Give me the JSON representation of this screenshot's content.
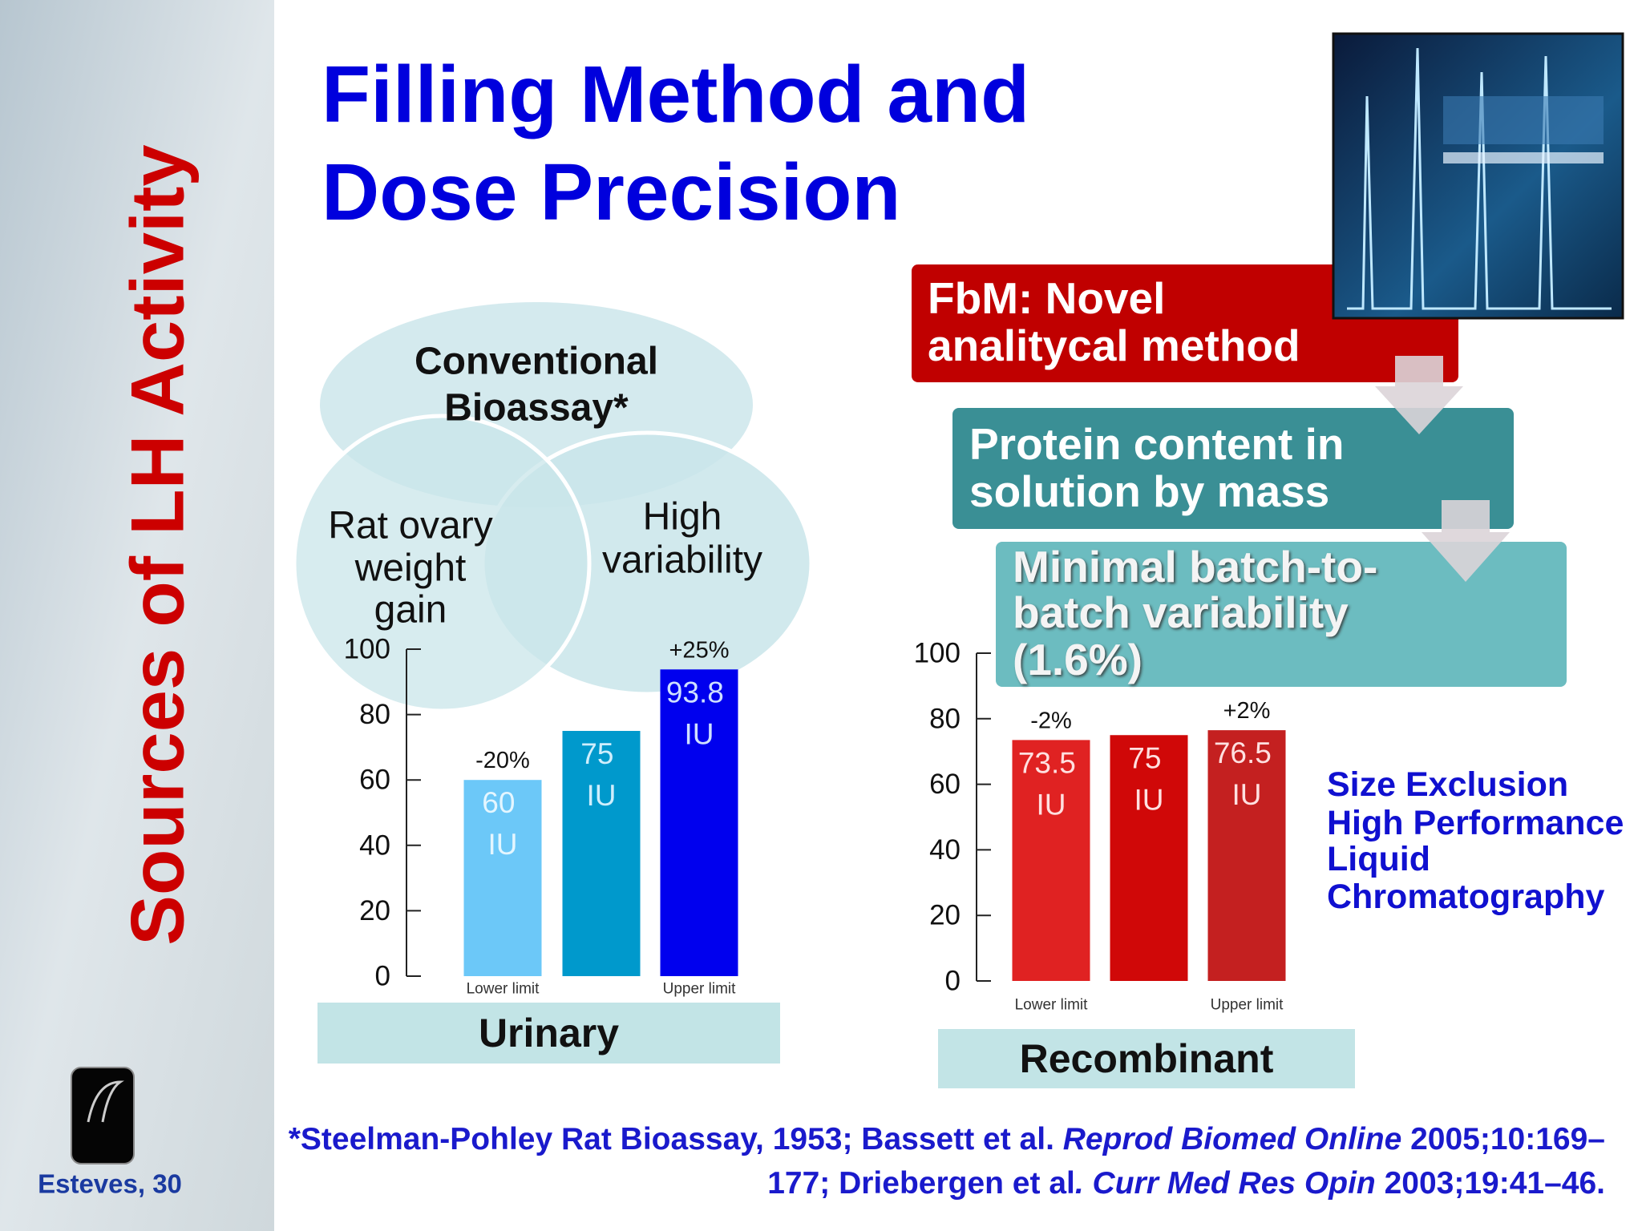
{
  "slide": {
    "sidebar_title": "Sources of LH Activity",
    "footer": "Esteves, 30",
    "title": [
      "Filling Method and",
      "Dose Precision"
    ],
    "venn": {
      "top": [
        "Conventional",
        "Bioassay*"
      ],
      "left": [
        "Rat ovary",
        "weight",
        "gain"
      ],
      "right": [
        "High",
        "variability"
      ]
    },
    "flow": [
      [
        "FbM: Novel",
        "analitycal method"
      ],
      [
        "Protein content in",
        "solution by mass"
      ],
      [
        "Minimal batch-to-",
        "batch variability",
        "(1.6%)"
      ]
    ],
    "method": [
      "Size Exclusion",
      "High Performance",
      "Liquid",
      "Chromatography"
    ],
    "citation": [
      [
        {
          "text": "*Steelman-Pohley Rat Bioassay, 1953; Bassett et al. ",
          "italic": false
        },
        {
          "text": "Reprod Biomed Online",
          "italic": true
        },
        {
          "text": " 2005;10:169–",
          "italic": false
        }
      ],
      [
        {
          "text": "177; Driebergen et al",
          "italic": false
        },
        {
          "text": ". Curr Med Res Opin",
          "italic": true
        },
        {
          "text": " 2003;19:41–46.",
          "italic": false
        }
      ]
    ]
  },
  "chart_data": [
    {
      "type": "bar",
      "xlabel": "Urinary",
      "categories": [
        "Lower limit",
        null,
        "Upper limit"
      ],
      "values": [
        60,
        75,
        93.8
      ],
      "value_labels": [
        "60 IU",
        "75 IU",
        "93.8 IU"
      ],
      "annotations": [
        "-20%",
        null,
        "+25%"
      ],
      "colors": [
        "#6cc8f8",
        "#0099cc",
        "#0000ee"
      ],
      "ylim": [
        0,
        100
      ],
      "yticks": [
        0,
        20,
        40,
        60,
        80,
        100
      ]
    },
    {
      "type": "bar",
      "xlabel": "Recombinant",
      "categories": [
        "Lower limit",
        null,
        "Upper limit"
      ],
      "values": [
        73.5,
        75,
        76.5
      ],
      "value_labels": [
        "73.5 IU",
        "75 IU",
        "76.5 IU"
      ],
      "annotations": [
        "-2%",
        null,
        "+2%"
      ],
      "colors": [
        "#e02222",
        "#d00808",
        "#c42020"
      ],
      "ylim": [
        0,
        100
      ],
      "yticks": [
        0,
        20,
        40,
        60,
        80,
        100
      ]
    }
  ]
}
